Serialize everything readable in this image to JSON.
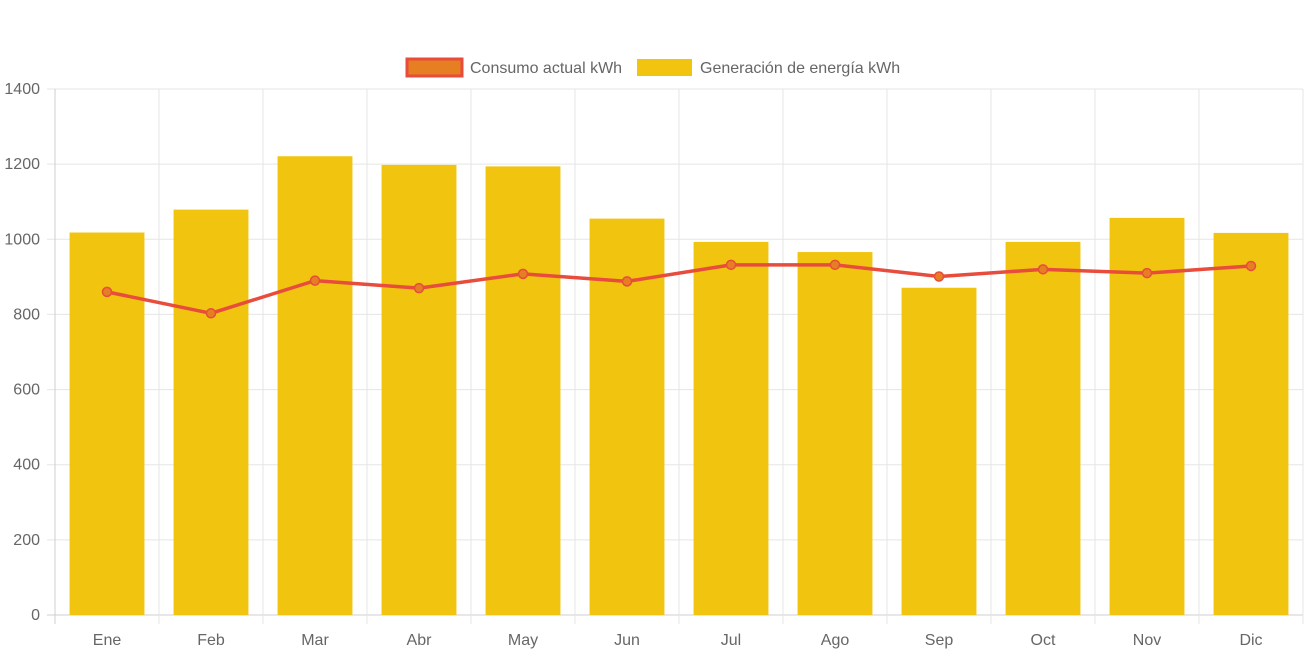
{
  "chart_data": {
    "type": "bar",
    "categories": [
      "Ene",
      "Feb",
      "Mar",
      "Abr",
      "May",
      "Jun",
      "Jul",
      "Ago",
      "Sep",
      "Oct",
      "Nov",
      "Dic"
    ],
    "series": [
      {
        "name": "Consumo actual kWh",
        "type": "line",
        "color": "#e74c3c",
        "point_fill": "#e67e22",
        "values": [
          860,
          803,
          890,
          870,
          908,
          888,
          932,
          932,
          901,
          920,
          910,
          929
        ]
      },
      {
        "name": "Generación de energía kWh",
        "type": "bar",
        "color": "#f1c40f",
        "values": [
          1018,
          1079,
          1221,
          1198,
          1194,
          1055,
          993,
          966,
          871,
          993,
          1057,
          1017
        ]
      }
    ],
    "y_ticks": [
      "0",
      "200",
      "400",
      "600",
      "800",
      "1000",
      "1200",
      "1400"
    ],
    "ylim": [
      0,
      1400
    ],
    "grid": true,
    "legend_position": "top"
  }
}
